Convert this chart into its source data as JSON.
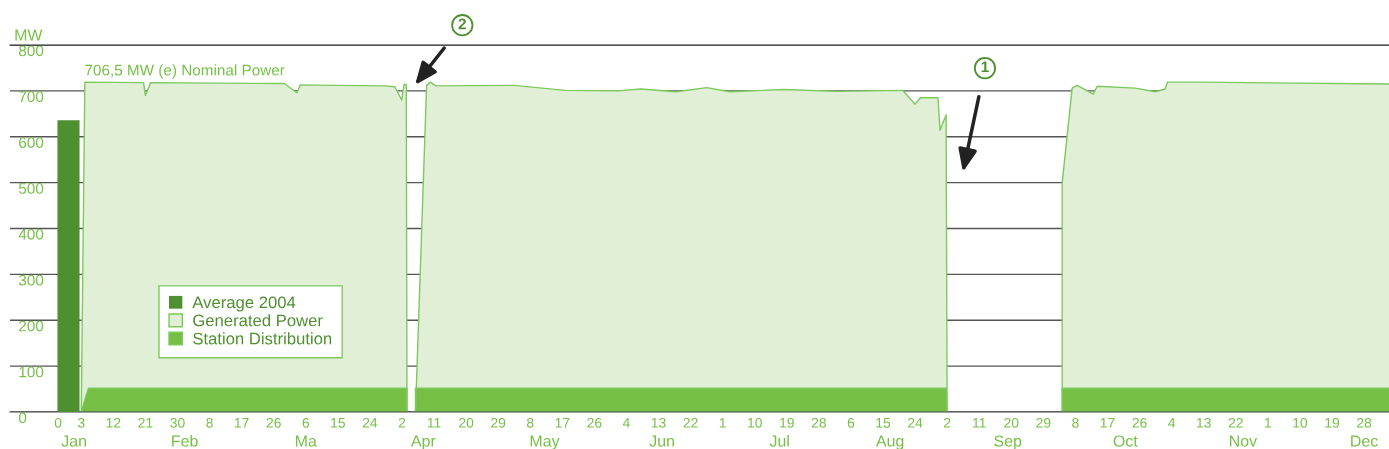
{
  "chart_data": {
    "type": "area",
    "ylabel": "MW",
    "xlim": [
      "2003-12-14",
      "2005-01-04"
    ],
    "ylim": [
      0,
      800
    ],
    "yticks": [
      0,
      100,
      200,
      300,
      400,
      500,
      600,
      700,
      800
    ],
    "xticks": [
      {
        "value": "2003-12-27T12:00",
        "label": "0"
      },
      {
        "value": "2004-01-03",
        "label": "3"
      },
      {
        "value": "2004-01-12",
        "label": "12"
      },
      {
        "value": "2004-01-21",
        "label": "21"
      },
      {
        "value": "2004-01-30",
        "label": "30"
      },
      {
        "value": "2004-02-08",
        "label": "8"
      },
      {
        "value": "2004-02-17",
        "label": "17"
      },
      {
        "value": "2004-02-26",
        "label": "26"
      },
      {
        "value": "2004-03-06",
        "label": "6"
      },
      {
        "value": "2004-03-15",
        "label": "15"
      },
      {
        "value": "2004-03-24",
        "label": "24"
      },
      {
        "value": "2004-04-02",
        "label": "2"
      },
      {
        "value": "2004-04-11",
        "label": "11"
      },
      {
        "value": "2004-04-20",
        "label": "20"
      },
      {
        "value": "2004-04-29",
        "label": "29"
      },
      {
        "value": "2004-05-08",
        "label": "8"
      },
      {
        "value": "2004-05-17",
        "label": "17"
      },
      {
        "value": "2004-05-26",
        "label": "26"
      },
      {
        "value": "2004-06-04",
        "label": "4"
      },
      {
        "value": "2004-06-13",
        "label": "13"
      },
      {
        "value": "2004-06-22",
        "label": "22"
      },
      {
        "value": "2004-07-01",
        "label": "1"
      },
      {
        "value": "2004-07-10",
        "label": "10"
      },
      {
        "value": "2004-07-19",
        "label": "19"
      },
      {
        "value": "2004-07-28",
        "label": "28"
      },
      {
        "value": "2004-08-06",
        "label": "6"
      },
      {
        "value": "2004-08-15",
        "label": "15"
      },
      {
        "value": "2004-08-24",
        "label": "24"
      },
      {
        "value": "2004-09-02",
        "label": "2"
      },
      {
        "value": "2004-09-11",
        "label": "11"
      },
      {
        "value": "2004-09-20",
        "label": "20"
      },
      {
        "value": "2004-09-29",
        "label": "29"
      },
      {
        "value": "2004-10-08",
        "label": "8"
      },
      {
        "value": "2004-10-17",
        "label": "17"
      },
      {
        "value": "2004-10-26",
        "label": "26"
      },
      {
        "value": "2004-11-04",
        "label": "4"
      },
      {
        "value": "2004-11-13",
        "label": "13"
      },
      {
        "value": "2004-11-22",
        "label": "22"
      },
      {
        "value": "2004-12-01",
        "label": "1"
      },
      {
        "value": "2004-12-10",
        "label": "10"
      },
      {
        "value": "2004-12-19",
        "label": "19"
      },
      {
        "value": "2004-12-28",
        "label": "28"
      }
    ],
    "x2lim": [
      "2003-12-14",
      "2005-01-04"
    ],
    "x2ticks": [
      {
        "value": "2004-01-01",
        "label": "Jan"
      },
      {
        "value": "2004-02-01",
        "label": "Feb"
      },
      {
        "value": "2004-03-06",
        "label": "Ma"
      },
      {
        "value": "2004-04-08",
        "label": "Apr"
      },
      {
        "value": "2004-05-12",
        "label": "May"
      },
      {
        "value": "2004-06-14",
        "label": "Jun"
      },
      {
        "value": "2004-07-17",
        "label": "Jul"
      },
      {
        "value": "2004-08-17",
        "label": "Aug"
      },
      {
        "value": "2004-09-19",
        "label": "Sep"
      },
      {
        "value": "2004-10-22",
        "label": "Oct"
      },
      {
        "value": "2004-11-24",
        "label": "Nov"
      },
      {
        "value": "2004-12-28",
        "label": "Dec"
      }
    ],
    "grid": "y",
    "legend": "bottom left",
    "annotations": [
      "706,5 MW (e) Nominal Power",
      "2",
      "1"
    ],
    "series": [
      {
        "name": "Average 2004",
        "type": "bar",
        "color": "#4e8f2f",
        "x": [
          "2003-12-30T10:00"
        ],
        "values": [
          636
        ]
      },
      {
        "name": "Generated Power",
        "color": "#e0efd6",
        "x": [
          "2004-01-03",
          "2004-01-04",
          "2004-01-20T12:00",
          "2004-01-21",
          "2004-01-22T12:00",
          "2004-02-09",
          "2004-02-29",
          "2004-03-03T12:00",
          "2004-03-04T12:00",
          "2004-03-15",
          "2004-03-28",
          "2004-03-31",
          "2004-04-01T22:00",
          "2004-04-02T14:00",
          "2004-04-03T05:00",
          "2004-04-03T10:00",
          null,
          "2004-04-05T19:00",
          "2004-04-08T22:00",
          "2004-04-10",
          "2004-04-11T12:00",
          "2004-05-03T14:00",
          "2004-05-17T17:00",
          "2004-06-01T12:00",
          "2004-06-08",
          "2004-06-18",
          "2004-06-26T12:00",
          "2004-07-03",
          "2004-07-18",
          "2004-08-02",
          "2004-08-20T14:00",
          "2004-08-24",
          "2004-08-25T12:00",
          "2004-08-30T10:00",
          "2004-08-31",
          "2004-09-01T17:00",
          "2004-09-02",
          null,
          "2004-10-04T07:00",
          "2004-10-04T07:00",
          "2004-10-07T02:00",
          "2004-10-08T12:00",
          "2004-10-13",
          "2004-10-14T02:00",
          "2004-10-24T19:00",
          "2004-10-30T10:00",
          "2004-11-02T05:00",
          "2004-11-02T19:00",
          "2004-11-12",
          "2005-01-04"
        ],
        "values": [
          0,
          719,
          718,
          690,
          718,
          717,
          716,
          696,
          713,
          712,
          711,
          709,
          680,
          714,
          714,
          0,
          null,
          0,
          712,
          719,
          711,
          712,
          701,
          700,
          704,
          698,
          707,
          698,
          703,
          699,
          701,
          671,
          685,
          685,
          614,
          648,
          0,
          null,
          0,
          500,
          706,
          712,
          693,
          710,
          706,
          698,
          704,
          719,
          719,
          715
        ]
      },
      {
        "name": "Station Distribution",
        "color": "#74bf44",
        "x": [
          "2004-01-03",
          "2004-01-05",
          "2004-04-03T10:00",
          "2004-04-03T10:00",
          null,
          "2004-04-05T19:00",
          "2004-04-05T19:00",
          "2004-09-01T17:00",
          "2004-09-02",
          null,
          "2004-10-04T07:00",
          "2004-10-04T07:00",
          "2005-01-04"
        ],
        "values": [
          0,
          52,
          52,
          0,
          null,
          0,
          52,
          52,
          0,
          null,
          0,
          52,
          52
        ]
      }
    ]
  }
}
